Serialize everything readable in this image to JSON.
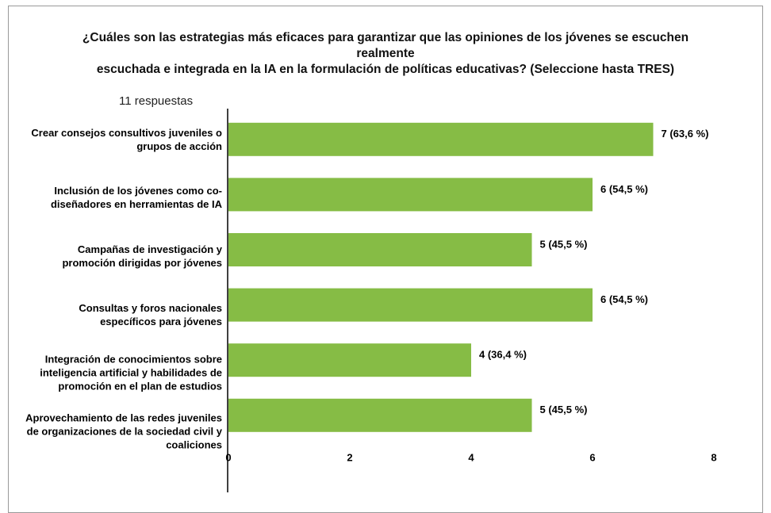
{
  "chart_data": {
    "type": "bar",
    "orientation": "horizontal",
    "title": [
      "¿Cuáles son las estrategias más eficaces para garantizar que las opiniones de los jóvenes se escuchen",
      "realmente",
      "escuchada e integrada en la IA en la formulación de políticas educativas? (Seleccione hasta TRES)"
    ],
    "subtitle": "11 respuestas",
    "categories": [
      "Crear consejos consultivos juveniles o grupos de acción",
      "Inclusión de los jóvenes como co-diseñadores en herramientas de IA",
      "Campañas de investigación y promoción dirigidas por jóvenes",
      "Consultas y foros nacionales específicos para jóvenes",
      "Integración de conocimientos sobre inteligencia artificial y habilidades de promoción en el plan de estudios",
      "Aprovechamiento de las redes juveniles de organizaciones de la sociedad civil y coaliciones"
    ],
    "values": [
      7,
      6,
      5,
      6,
      4,
      5
    ],
    "value_labels": [
      "7 (63,6 %)",
      "6 (54,5 %)",
      "5 (45,5 %)",
      "6 (54,5 %)",
      "4 (36,4 %)",
      "5 (45,5 %)"
    ],
    "color": "#86bc45",
    "xlim": [
      0,
      8
    ],
    "xticks": [
      0,
      2,
      4,
      6,
      8
    ],
    "grid": false
  }
}
